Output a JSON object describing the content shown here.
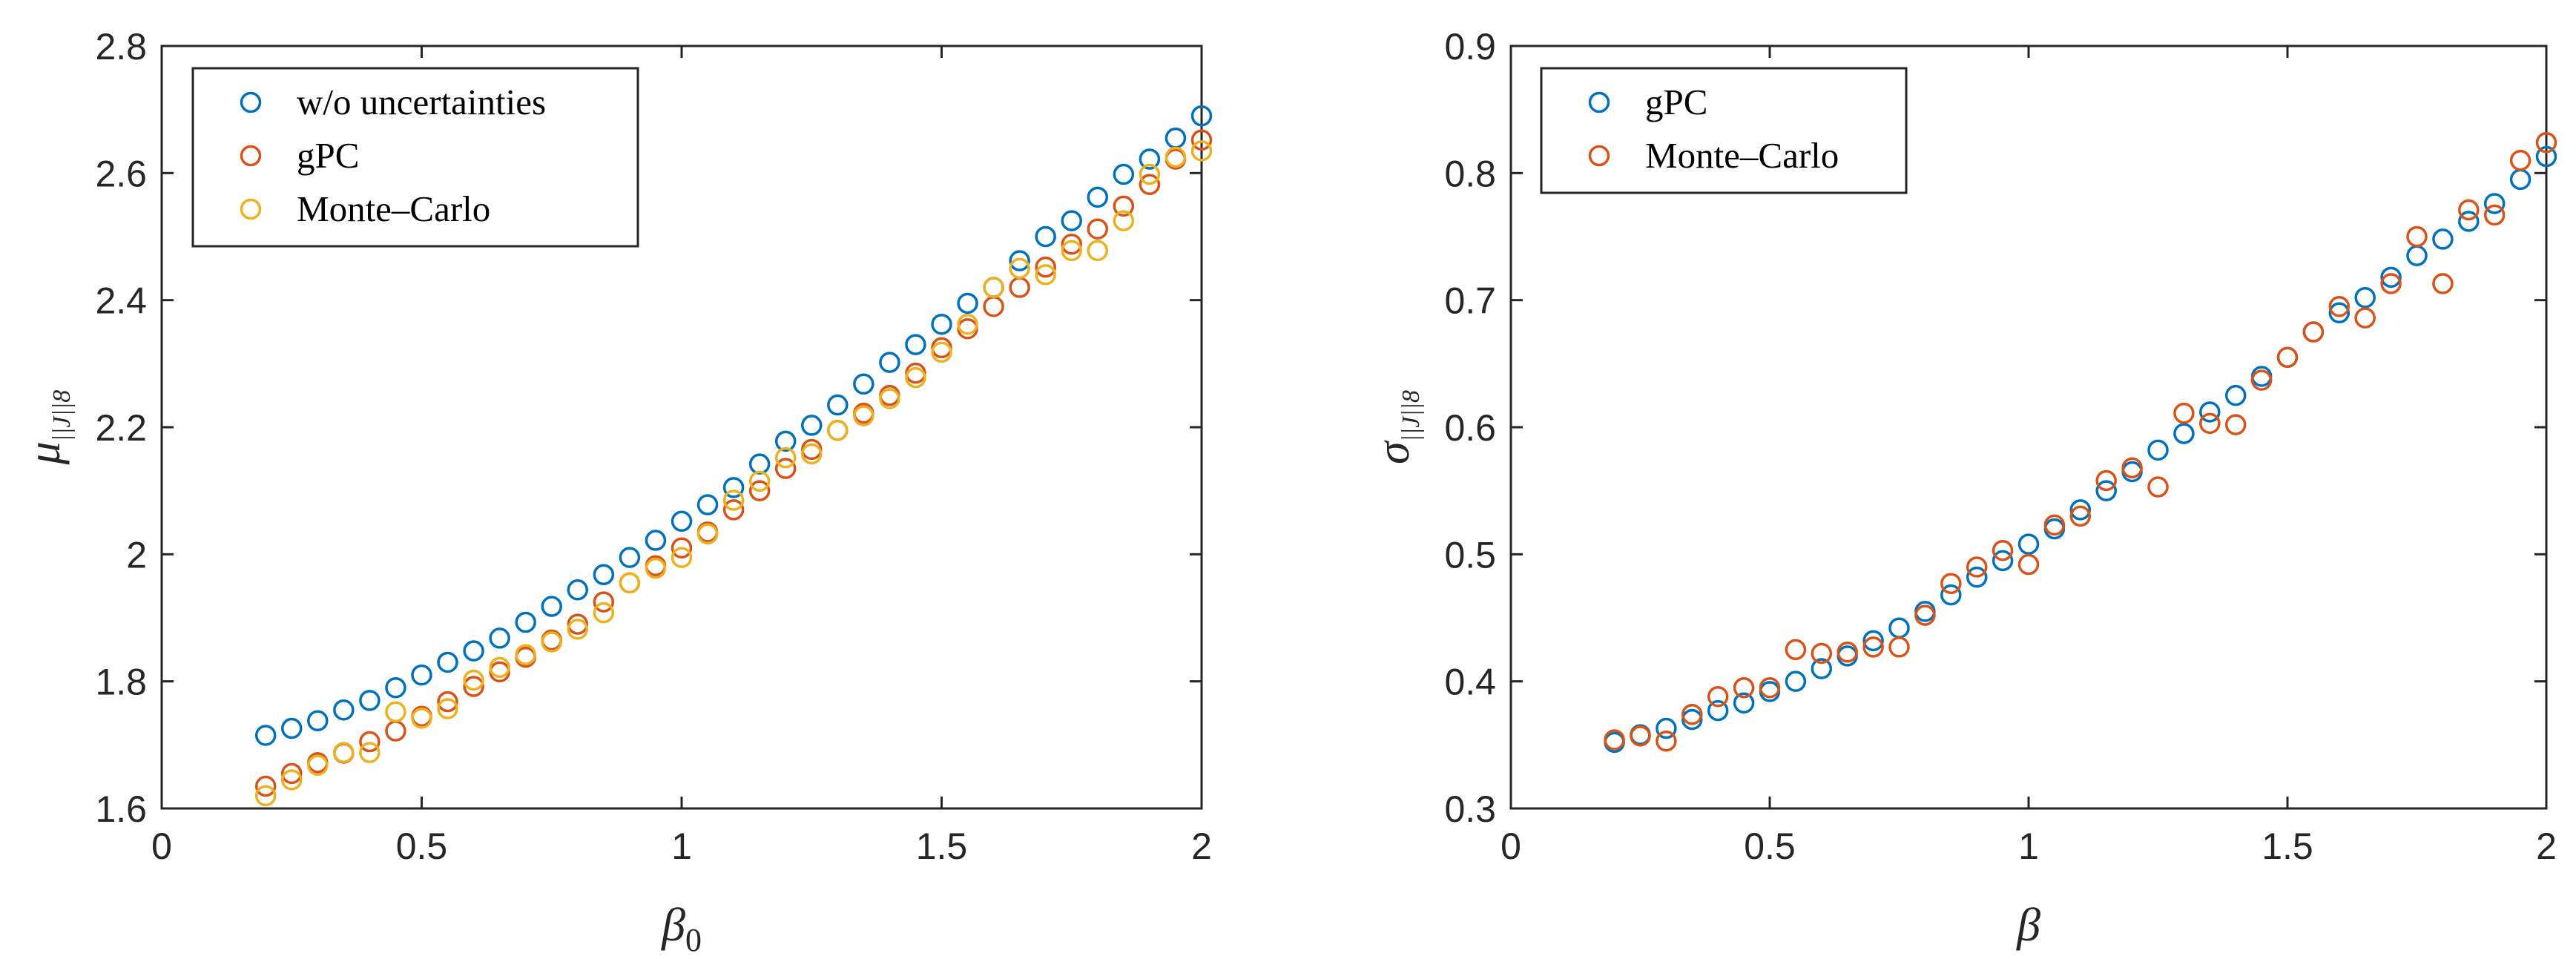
{
  "chart_data": [
    {
      "type": "scatter",
      "xlabel": "β",
      "xlabel_sub": "0",
      "ylabel": "μ",
      "ylabel_sub": "||J||8",
      "xlim": [
        0,
        2
      ],
      "ylim": [
        1.6,
        2.8
      ],
      "xticks": [
        0,
        0.5,
        1,
        1.5,
        2
      ],
      "xtick_labels": [
        "0",
        "0.5",
        "1",
        "1.5",
        "2"
      ],
      "yticks": [
        1.6,
        1.8,
        2,
        2.2,
        2.4,
        2.6,
        2.8
      ],
      "ytick_labels": [
        "1.6",
        "1.8",
        "2",
        "2.2",
        "2.4",
        "2.6",
        "2.8"
      ],
      "legend_position": "top-left",
      "x": [
        0.2,
        0.25,
        0.3,
        0.35,
        0.4,
        0.45,
        0.5,
        0.55,
        0.6,
        0.65,
        0.7,
        0.75,
        0.8,
        0.85,
        0.9,
        0.95,
        1.0,
        1.05,
        1.1,
        1.15,
        1.2,
        1.25,
        1.3,
        1.35,
        1.4,
        1.45,
        1.5,
        1.55,
        1.6,
        1.65,
        1.7,
        1.75,
        1.8,
        1.85,
        1.9,
        1.95,
        2.0
      ],
      "series": [
        {
          "name": "w/o uncertainties",
          "color": "#0072bd",
          "values": [
            1.715,
            1.726,
            1.738,
            1.755,
            1.77,
            1.79,
            1.81,
            1.83,
            1.848,
            1.868,
            1.893,
            1.918,
            1.944,
            1.968,
            1.995,
            2.022,
            2.052,
            2.078,
            2.105,
            2.142,
            2.178,
            2.203,
            2.235,
            2.268,
            2.302,
            2.33,
            2.362,
            2.395,
            2.42,
            2.462,
            2.5,
            2.525,
            2.562,
            2.598,
            2.622,
            2.655,
            2.69
          ]
        },
        {
          "name": "gPC",
          "color": "#d95319",
          "values": [
            1.635,
            1.655,
            1.672,
            1.687,
            1.705,
            1.722,
            1.745,
            1.768,
            1.792,
            1.815,
            1.838,
            1.865,
            1.89,
            1.925,
            1.955,
            1.982,
            2.01,
            2.035,
            2.07,
            2.1,
            2.135,
            2.165,
            2.195,
            2.222,
            2.25,
            2.285,
            2.325,
            2.355,
            2.39,
            2.42,
            2.452,
            2.488,
            2.512,
            2.548,
            2.582,
            2.622,
            2.652
          ]
        },
        {
          "name": "Monte–Carlo",
          "color": "#edb120",
          "values": [
            1.62,
            1.645,
            1.668,
            1.688,
            1.688,
            1.752,
            1.742,
            1.757,
            1.802,
            1.822,
            1.842,
            1.862,
            1.882,
            1.908,
            1.955,
            1.978,
            1.995,
            2.032,
            2.085,
            2.115,
            2.152,
            2.158,
            2.195,
            2.218,
            2.245,
            2.278,
            2.318,
            2.362,
            2.42,
            2.45,
            2.44,
            2.478,
            2.478,
            2.525,
            2.598,
            2.625,
            2.635
          ]
        }
      ]
    },
    {
      "type": "scatter",
      "xlabel": "β",
      "xlabel_sub": "",
      "ylabel": "σ",
      "ylabel_sub": "||J||8",
      "xlim": [
        0,
        2
      ],
      "ylim": [
        0.3,
        0.9
      ],
      "xticks": [
        0,
        0.5,
        1,
        1.5,
        2
      ],
      "xtick_labels": [
        "0",
        "0.5",
        "1",
        "1.5",
        "2"
      ],
      "yticks": [
        0.3,
        0.4,
        0.5,
        0.6,
        0.7,
        0.8,
        0.9
      ],
      "ytick_labels": [
        "0.3",
        "0.4",
        "0.5",
        "0.6",
        "0.7",
        "0.8",
        "0.9"
      ],
      "legend_position": "top-left",
      "x": [
        0.2,
        0.25,
        0.3,
        0.35,
        0.4,
        0.45,
        0.5,
        0.55,
        0.6,
        0.65,
        0.7,
        0.75,
        0.8,
        0.85,
        0.9,
        0.95,
        1.0,
        1.05,
        1.1,
        1.15,
        1.2,
        1.25,
        1.3,
        1.35,
        1.4,
        1.45,
        1.5,
        1.55,
        1.6,
        1.65,
        1.7,
        1.75,
        1.8,
        1.85,
        1.9,
        1.95,
        2.0
      ],
      "series": [
        {
          "name": "gPC",
          "color": "#0072bd",
          "values": [
            0.352,
            0.358,
            0.363,
            0.37,
            0.377,
            0.383,
            0.392,
            0.4,
            0.41,
            0.42,
            0.432,
            0.442,
            0.455,
            0.468,
            0.482,
            0.495,
            0.508,
            0.52,
            0.535,
            0.55,
            0.565,
            0.582,
            0.595,
            0.612,
            0.625,
            0.64,
            0.655,
            0.675,
            0.69,
            0.702,
            0.718,
            0.735,
            0.748,
            0.762,
            0.776,
            0.795,
            0.813
          ]
        },
        {
          "name": "Monte–Carlo",
          "color": "#d95319",
          "values": [
            0.354,
            0.357,
            0.353,
            0.374,
            0.388,
            0.395,
            0.395,
            0.425,
            0.422,
            0.423,
            0.427,
            0.427,
            0.452,
            0.477,
            0.49,
            0.503,
            0.492,
            0.523,
            0.53,
            0.558,
            0.568,
            0.553,
            0.611,
            0.603,
            0.602,
            0.637,
            0.655,
            0.675,
            0.695,
            0.686,
            0.713,
            0.75,
            0.713,
            0.771,
            0.767,
            0.81,
            0.824
          ]
        }
      ]
    }
  ]
}
